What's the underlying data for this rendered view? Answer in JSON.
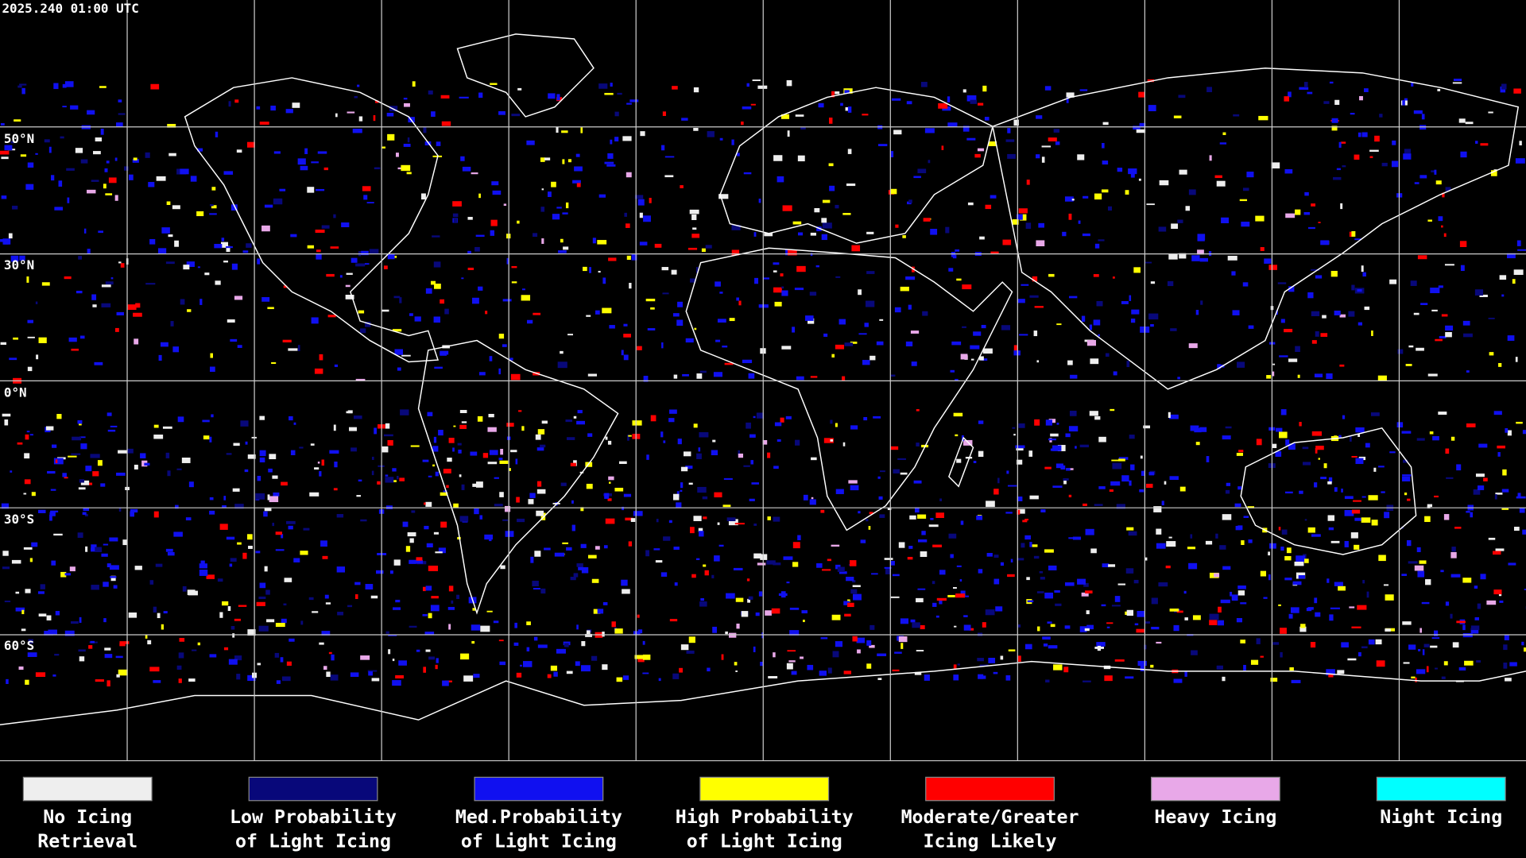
{
  "timestamp": "2025.240 01:00 UTC",
  "latitude_labels": [
    "50°N",
    "30°N",
    "0°N",
    "30°S",
    "60°S"
  ],
  "legend": [
    {
      "label_lines": [
        "No Icing",
        "Retrieval"
      ],
      "color": "#eeeeee"
    },
    {
      "label_lines": [
        "Low Probability",
        "of Light Icing"
      ],
      "color": "#08087a"
    },
    {
      "label_lines": [
        "Med.Probability",
        "of Light Icing"
      ],
      "color": "#1010f0"
    },
    {
      "label_lines": [
        "High Probability",
        "of Light Icing"
      ],
      "color": "#ffff00"
    },
    {
      "label_lines": [
        "Moderate/Greater",
        "Icing Likely"
      ],
      "color": "#ff0000"
    },
    {
      "label_lines": [
        "Heavy Icing"
      ],
      "color": "#e8a8e8"
    },
    {
      "label_lines": [
        "Night Icing"
      ],
      "color": "#00ffff"
    }
  ]
}
